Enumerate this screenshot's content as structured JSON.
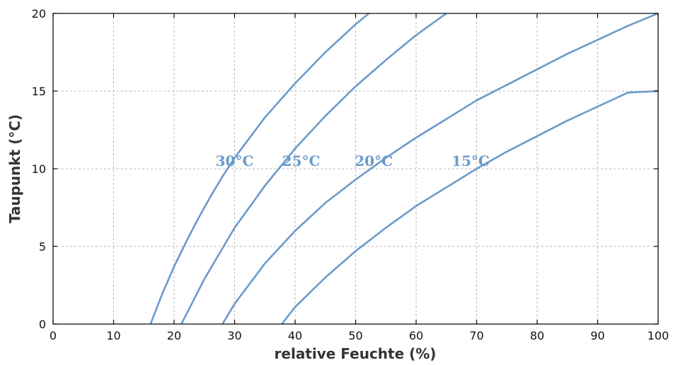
{
  "chart_data": {
    "type": "line",
    "title": "",
    "xlabel": "relative Feuchte (%)",
    "ylabel": "Taupunkt (°C)",
    "xlim": [
      0,
      100
    ],
    "ylim": [
      0,
      20
    ],
    "xticks": [
      0,
      10,
      20,
      30,
      40,
      50,
      60,
      70,
      80,
      90,
      100
    ],
    "yticks": [
      0,
      5,
      10,
      15,
      20
    ],
    "grid": true,
    "line_color": "#6b9acb",
    "series": [
      {
        "name": "30°C",
        "label_at": [
          30,
          10.5
        ],
        "x": [
          16.1,
          18,
          20,
          22,
          24,
          26,
          28,
          30,
          35,
          40,
          45,
          50,
          55,
          57
        ],
        "y": [
          0.0,
          1.9,
          3.7,
          5.3,
          6.8,
          8.2,
          9.5,
          10.7,
          13.3,
          15.5,
          17.5,
          19.3,
          20.9,
          21.5
        ]
      },
      {
        "name": "25°C",
        "label_at": [
          41,
          10.5
        ],
        "x": [
          21.2,
          25,
          30,
          35,
          40,
          45,
          50,
          55,
          60,
          65,
          70,
          75
        ],
        "y": [
          0.0,
          2.9,
          6.2,
          8.9,
          11.3,
          13.4,
          15.3,
          17.0,
          18.6,
          20.0,
          21.4,
          22.6
        ]
      },
      {
        "name": "20°C",
        "label_at": [
          53,
          10.5
        ],
        "x": [
          28.0,
          30,
          35,
          40,
          45,
          50,
          55,
          60,
          65,
          70,
          75,
          80,
          85,
          90,
          95,
          100
        ],
        "y": [
          0.0,
          1.3,
          3.9,
          6.0,
          7.8,
          9.3,
          10.7,
          12.0,
          13.2,
          14.4,
          15.4,
          16.4,
          17.4,
          18.3,
          19.2,
          20.0
        ]
      },
      {
        "name": "15°C",
        "label_at": [
          69,
          10.5
        ],
        "x": [
          37.8,
          40,
          45,
          50,
          55,
          60,
          65,
          70,
          75,
          80,
          85,
          90,
          95,
          100
        ],
        "y": [
          0.0,
          1.1,
          3.0,
          4.7,
          6.2,
          7.6,
          8.8,
          10.0,
          11.1,
          12.1,
          13.1,
          14.0,
          14.9,
          15.0
        ]
      }
    ]
  }
}
